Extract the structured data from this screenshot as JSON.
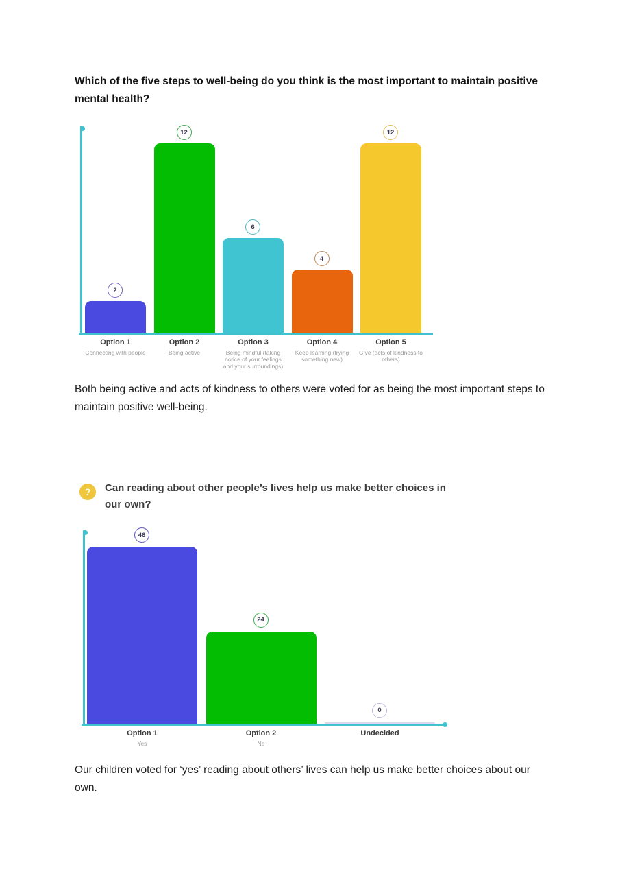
{
  "page": {
    "heading": "Which of the five steps to well-being do you think is the most important to maintain positive mental health?",
    "paragraph1": "Both being active and acts of kindness to others were voted for as being the most important steps to maintain positive well-being.",
    "question2": "Can reading about other people’s lives help us make better choices in our own?",
    "question2_icon": "?",
    "paragraph2": "Our children voted for ‘yes’ reading about others’ lives can help us make better choices about our own."
  },
  "colors": {
    "axis": "#3FC2CE",
    "zero_bar": "#DBD8F0",
    "badge_text": "#3F3B55"
  },
  "chart_data": [
    {
      "type": "bar",
      "title": "Which of the five steps to well-being do you think is the most important to maintain positive mental health?",
      "categories": [
        "Option 1",
        "Option 2",
        "Option 3",
        "Option 4",
        "Option 5"
      ],
      "sublabels": [
        "Connecting with people",
        "Being active",
        "Being mindful (taking notice of your feelings and your surroundings)",
        "Keep learning (trying something new)",
        "Give (acts of kindness to others)"
      ],
      "values": [
        2,
        12,
        6,
        4,
        12
      ],
      "bar_colors": [
        "#4A49E0",
        "#03BD03",
        "#41C4D1",
        "#E8650D",
        "#F5C82E"
      ],
      "badge_border_colors": [
        "#6F66B8",
        "#43AA52",
        "#4FB3BE",
        "#C98B57",
        "#DFBC55"
      ],
      "xlabel": "",
      "ylabel": "",
      "ylim": [
        0,
        13
      ],
      "grid": false,
      "legend": false
    },
    {
      "type": "bar",
      "title": "Can reading about other people’s lives help us make better choices in our own?",
      "categories": [
        "Option 1",
        "Option 2",
        "Undecided"
      ],
      "sublabels": [
        "Yes",
        "No",
        ""
      ],
      "values": [
        46,
        24,
        0
      ],
      "bar_colors": [
        "#4A49E0",
        "#03BD03",
        "#DBD8F0"
      ],
      "badge_border_colors": [
        "#5A52C4",
        "#3FAE4F",
        "#BDB7DE"
      ],
      "xlabel": "",
      "ylabel": "",
      "ylim": [
        0,
        50
      ],
      "grid": false,
      "legend": false
    }
  ]
}
